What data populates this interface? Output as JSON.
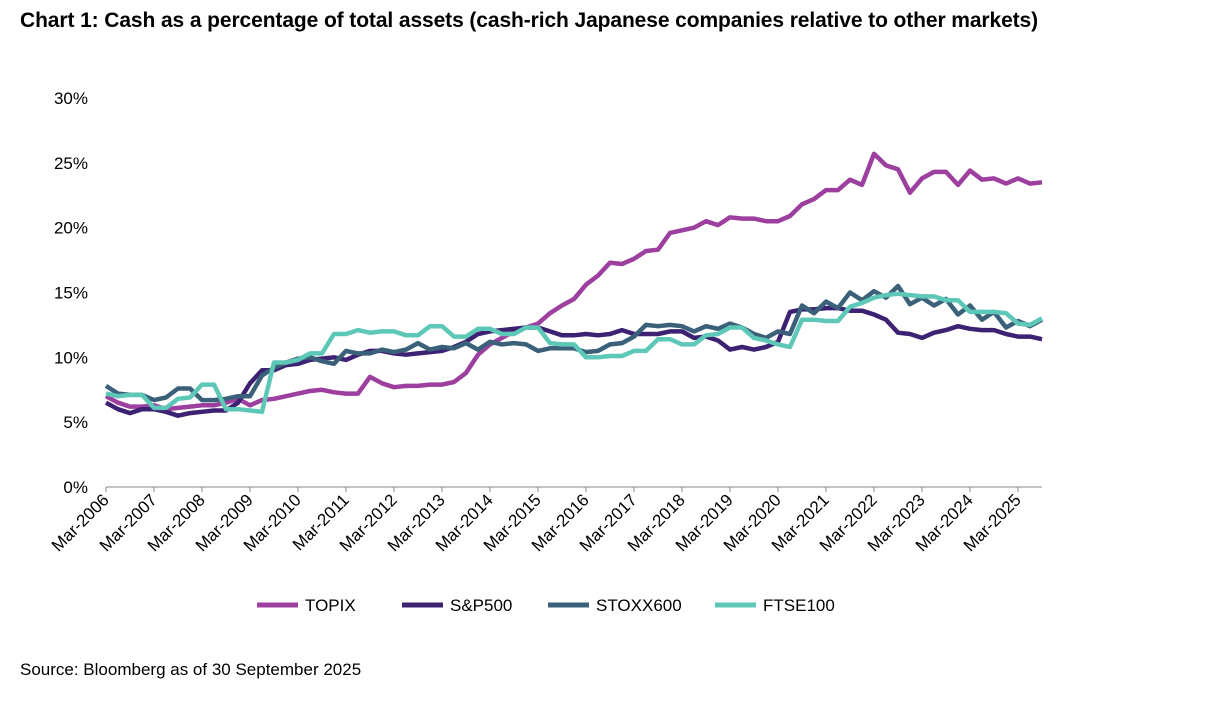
{
  "chart_data": {
    "type": "line",
    "title": "Chart 1: Cash as a percentage of total assets (cash-rich Japanese companies relative to other markets)",
    "source": "Source: Bloomberg as of 30 September 2025",
    "xlabel": "",
    "ylabel": "",
    "ylim": [
      0,
      30
    ],
    "yticks": [
      "0%",
      "5%",
      "10%",
      "15%",
      "20%",
      "25%",
      "30%"
    ],
    "ytick_values": [
      0,
      5,
      10,
      15,
      20,
      25,
      30
    ],
    "xticks": [
      "Mar-2006",
      "Mar-2007",
      "Mar-2008",
      "Mar-2009",
      "Mar-2010",
      "Mar-2011",
      "Mar-2012",
      "Mar-2013",
      "Mar-2014",
      "Mar-2015",
      "Mar-2016",
      "Mar-2017",
      "Mar-2018",
      "Mar-2019",
      "Mar-2020",
      "Mar-2021",
      "Mar-2022",
      "Mar-2023",
      "Mar-2024",
      "Mar-2025"
    ],
    "x_frequency": "quarterly, Mar-2006 to Sep-2025",
    "grid": false,
    "legend_position": "bottom",
    "series": [
      {
        "name": "TOPIX",
        "color": "#9c3f9f",
        "values": [
          7.0,
          6.5,
          6.2,
          6.2,
          6.3,
          6.0,
          6.1,
          6.2,
          6.3,
          6.3,
          6.5,
          6.8,
          6.3,
          6.7,
          6.8,
          7.0,
          7.2,
          7.4,
          7.5,
          7.3,
          7.2,
          7.2,
          8.5,
          8.0,
          7.7,
          7.8,
          7.8,
          7.9,
          7.9,
          8.1,
          8.8,
          10.2,
          11.0,
          11.5,
          12.0,
          12.3,
          12.6,
          13.4,
          14.0,
          14.5,
          15.6,
          16.3,
          17.3,
          17.2,
          17.6,
          18.2,
          18.3,
          19.6,
          19.8,
          20.0,
          20.5,
          20.2,
          20.8,
          20.7,
          20.7,
          20.5,
          20.5,
          20.9,
          21.8,
          22.2,
          22.9,
          22.9,
          23.7,
          23.3,
          25.7,
          24.8,
          24.5,
          22.7,
          23.8,
          24.3,
          24.3,
          23.3,
          24.4,
          23.7,
          23.8,
          23.4,
          23.8,
          23.4,
          23.5
        ]
      },
      {
        "name": "S&P500",
        "color": "#3d2172",
        "values": [
          6.5,
          6.0,
          5.7,
          6.0,
          6.0,
          5.8,
          5.5,
          5.7,
          5.8,
          5.9,
          5.9,
          6.5,
          8.0,
          9.0,
          9.0,
          9.4,
          9.5,
          9.8,
          9.9,
          10.0,
          9.8,
          10.2,
          10.5,
          10.5,
          10.3,
          10.2,
          10.3,
          10.4,
          10.5,
          10.8,
          11.2,
          11.8,
          12.0,
          12.1,
          12.2,
          12.3,
          12.3,
          12.0,
          11.7,
          11.7,
          11.8,
          11.7,
          11.8,
          12.1,
          11.8,
          11.8,
          11.8,
          12.0,
          12.0,
          11.5,
          11.6,
          11.3,
          10.6,
          10.8,
          10.6,
          10.8,
          11.2,
          13.5,
          13.7,
          13.7,
          13.8,
          13.8,
          13.6,
          13.6,
          13.3,
          12.9,
          11.9,
          11.8,
          11.5,
          11.9,
          12.1,
          12.4,
          12.2,
          12.1,
          12.1,
          11.8,
          11.6,
          11.6,
          11.4
        ]
      },
      {
        "name": "STOXX600",
        "color": "#3a6179",
        "values": [
          7.8,
          7.2,
          7.1,
          7.1,
          6.7,
          6.9,
          7.6,
          7.6,
          6.7,
          6.7,
          6.8,
          7.0,
          7.0,
          8.6,
          9.2,
          9.6,
          9.9,
          10.0,
          9.7,
          9.5,
          10.5,
          10.3,
          10.3,
          10.6,
          10.4,
          10.6,
          11.1,
          10.6,
          10.8,
          10.7,
          11.1,
          10.6,
          11.2,
          11.0,
          11.1,
          11.0,
          10.5,
          10.7,
          10.7,
          10.7,
          10.4,
          10.5,
          11.0,
          11.1,
          11.6,
          12.5,
          12.4,
          12.5,
          12.4,
          12.0,
          12.4,
          12.2,
          12.6,
          12.3,
          11.8,
          11.5,
          12.0,
          11.8,
          14.0,
          13.4,
          14.3,
          13.8,
          15.0,
          14.4,
          15.1,
          14.6,
          15.5,
          14.1,
          14.6,
          14.0,
          14.5,
          13.3,
          14.0,
          12.9,
          13.5,
          12.3,
          12.8,
          12.4,
          12.9
        ]
      },
      {
        "name": "FTSE100",
        "color": "#5ec8b8",
        "values": [
          7.2,
          7.0,
          7.1,
          7.1,
          6.1,
          6.1,
          6.8,
          6.9,
          7.9,
          7.9,
          6.0,
          6.0,
          5.9,
          5.8,
          9.6,
          9.6,
          9.8,
          10.3,
          10.3,
          11.8,
          11.8,
          12.1,
          11.9,
          12.0,
          12.0,
          11.7,
          11.7,
          12.4,
          12.4,
          11.6,
          11.6,
          12.2,
          12.2,
          11.8,
          11.8,
          12.3,
          12.3,
          11.1,
          11.0,
          11.0,
          10.0,
          10.0,
          10.1,
          10.1,
          10.5,
          10.5,
          11.4,
          11.4,
          11.0,
          11.0,
          11.7,
          11.8,
          12.3,
          12.3,
          11.5,
          11.3,
          11.0,
          10.8,
          12.9,
          12.9,
          12.8,
          12.8,
          13.9,
          14.2,
          14.6,
          14.8,
          14.9,
          14.8,
          14.7,
          14.7,
          14.4,
          14.4,
          13.5,
          13.5,
          13.5,
          13.4,
          12.6,
          12.5,
          13.0
        ]
      }
    ]
  }
}
